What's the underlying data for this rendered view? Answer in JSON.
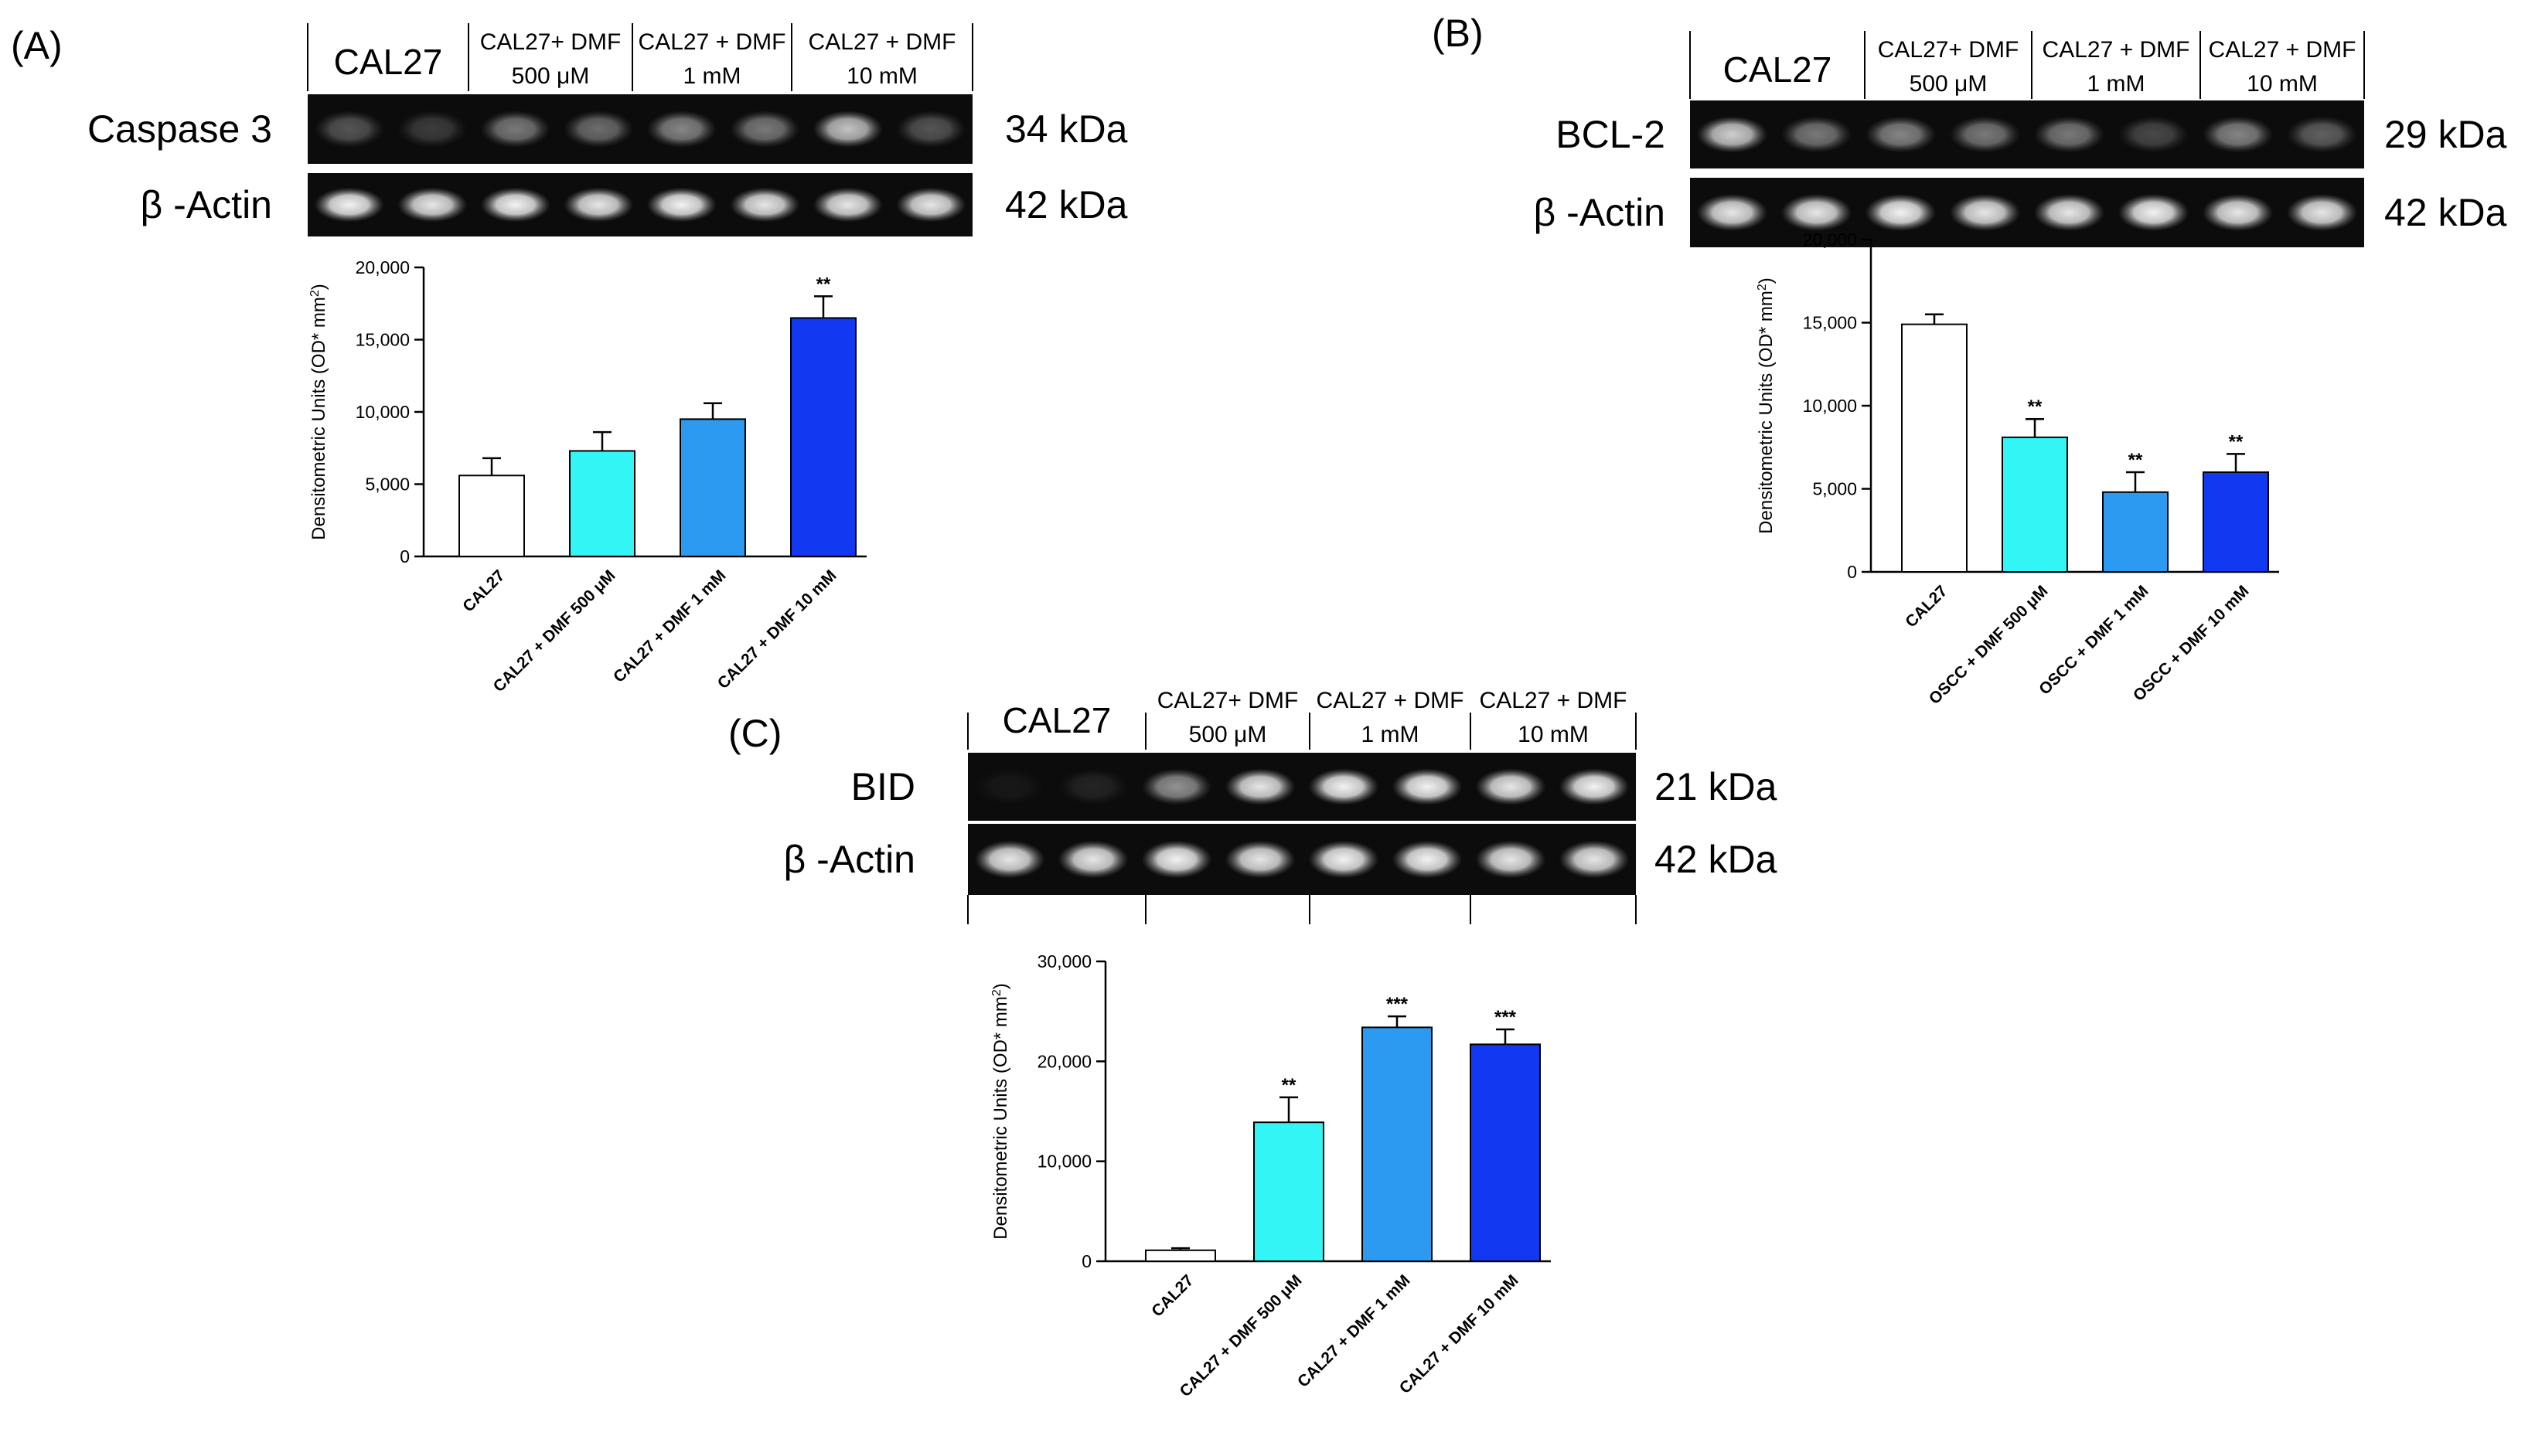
{
  "panels": [
    {
      "letter": "(A)",
      "blot": {
        "lane_headers": [
          {
            "line1": "CAL27",
            "line2": ""
          },
          {
            "line1": "CAL27+ DMF",
            "line2": "500 μM"
          },
          {
            "line1": "CAL27 + DMF",
            "line2": "1 mM"
          },
          {
            "line1": "CAL27 + DMF",
            "line2": "10 mM"
          }
        ],
        "bands": [
          {
            "name": "Caspase 3",
            "mw": "34  kDa",
            "intensity": [
              0.3,
              0.2,
              0.45,
              0.4,
              0.5,
              0.45,
              0.75,
              0.3
            ]
          },
          {
            "name": "β -Actin",
            "mw": "42  kDa",
            "intensity": [
              0.95,
              0.9,
              0.95,
              0.9,
              0.95,
              0.9,
              0.9,
              0.9
            ]
          }
        ]
      }
    },
    {
      "letter": "(B)",
      "blot": {
        "lane_headers": [
          {
            "line1": "CAL27",
            "line2": ""
          },
          {
            "line1": "CAL27+ DMF",
            "line2": "500 μM"
          },
          {
            "line1": "CAL27 + DMF",
            "line2": "1 mM"
          },
          {
            "line1": "CAL27 + DMF",
            "line2": "10 mM"
          }
        ],
        "bands": [
          {
            "name": "BCL-2",
            "mw": "29 kDa",
            "intensity": [
              0.8,
              0.45,
              0.5,
              0.45,
              0.45,
              0.25,
              0.5,
              0.35
            ]
          },
          {
            "name": "β -Actin",
            "mw": "42 kDa",
            "intensity": [
              0.9,
              0.9,
              0.95,
              0.9,
              0.9,
              0.95,
              0.9,
              0.9
            ]
          }
        ]
      }
    },
    {
      "letter": "(C)",
      "blot": {
        "lane_headers": [
          {
            "line1": "CAL27",
            "line2": ""
          },
          {
            "line1": "CAL27+ DMF",
            "line2": "500 μM"
          },
          {
            "line1": "CAL27 + DMF",
            "line2": "1 mM"
          },
          {
            "line1": "CAL27 + DMF",
            "line2": "10 mM"
          }
        ],
        "bands": [
          {
            "name": "BID",
            "mw": "21 kDa",
            "intensity": [
              0.05,
              0.1,
              0.55,
              0.9,
              0.95,
              0.95,
              0.9,
              0.95
            ]
          },
          {
            "name": "β -Actin",
            "mw": "42 kDa",
            "intensity": [
              0.9,
              0.9,
              0.95,
              0.9,
              0.95,
              0.95,
              0.9,
              0.9
            ]
          }
        ]
      }
    }
  ],
  "chart_data": [
    {
      "type": "bar",
      "panel": "(A)",
      "ylabel": "Densitometric Units (OD* mm2)",
      "ylim": [
        0,
        20000
      ],
      "yticks": [
        0,
        5000,
        10000,
        15000,
        20000
      ],
      "ytick_labels": [
        "0",
        "5,000",
        "10,000",
        "15,000",
        "20,000"
      ],
      "categories": [
        "CAL27",
        "CAL27 + DMF 500 μM",
        "CAL27 + DMF 1 mM",
        "CAL27 + DMF 10 mM"
      ],
      "values": [
        5600,
        7300,
        9500,
        16500
      ],
      "errors": [
        1200,
        1300,
        1100,
        1500
      ],
      "significance": [
        "",
        "",
        "",
        "**"
      ],
      "colors": [
        "#ffffff",
        "#33f5f5",
        "#2b9af0",
        "#1338f2"
      ]
    },
    {
      "type": "bar",
      "panel": "(B)",
      "ylabel": "Densitometric Units (OD* mm2)",
      "ylim": [
        0,
        20000
      ],
      "yticks": [
        0,
        5000,
        10000,
        15000,
        20000
      ],
      "ytick_labels": [
        "0",
        "5,000",
        "10,000",
        "15,000",
        "20,000"
      ],
      "categories": [
        "CAL27",
        "OSCC + DMF 500 μM",
        "OSCC + DMF 1 mM",
        "OSCC + DMF 10 mM"
      ],
      "values": [
        14900,
        8100,
        4800,
        6000
      ],
      "errors": [
        600,
        1100,
        1200,
        1100
      ],
      "significance": [
        "",
        "**",
        "**",
        "**"
      ],
      "colors": [
        "#ffffff",
        "#33f5f5",
        "#2b9af0",
        "#1338f2"
      ]
    },
    {
      "type": "bar",
      "panel": "(C)",
      "ylabel": "Densitometric Units (OD* mm2)",
      "ylim": [
        0,
        30000
      ],
      "yticks": [
        0,
        10000,
        20000,
        30000
      ],
      "ytick_labels": [
        "0",
        "10,000",
        "20,000",
        "30,000"
      ],
      "categories": [
        "CAL27",
        "CAL27 + DMF 500 μM",
        "CAL27 + DMF 1 mM",
        "CAL27 + DMF 10 mM"
      ],
      "values": [
        1100,
        13900,
        23400,
        21700
      ],
      "errors": [
        200,
        2500,
        1100,
        1500
      ],
      "significance": [
        "",
        "**",
        "***",
        "***"
      ],
      "colors": [
        "#ffffff",
        "#33f5f5",
        "#2b9af0",
        "#1338f2"
      ]
    }
  ]
}
